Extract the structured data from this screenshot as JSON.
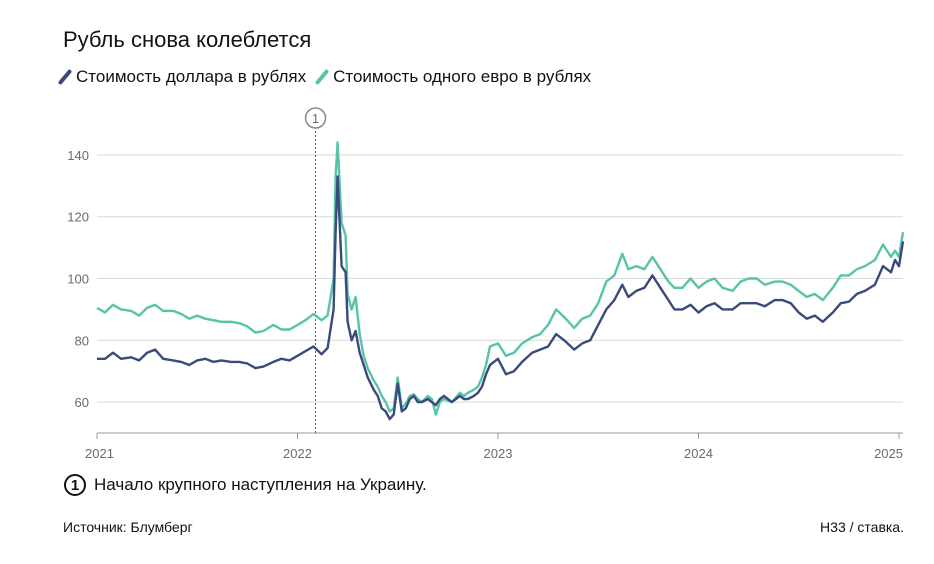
{
  "title": "Рубль снова колеблется",
  "legend": [
    {
      "label": "Стоимость доллара в рублях",
      "color": "#3a4a7a"
    },
    {
      "label": "Стоимость одного евро в рублях",
      "color": "#57c4a8"
    }
  ],
  "note": {
    "number": "1",
    "text": "Начало крупного наступления на Украину."
  },
  "footer": {
    "source": "Источник: Блумберг",
    "credit": "Н33 / ставка."
  },
  "chart_data": {
    "type": "line",
    "title": "Рубль снова колеблется",
    "xlabel": "",
    "ylabel": "",
    "xlim": [
      2021.0,
      2025.02
    ],
    "ylim": [
      50,
      150
    ],
    "x_ticks": [
      "2021",
      "2022",
      "2023",
      "2024",
      "2025"
    ],
    "y_ticks": [
      60,
      80,
      100,
      120,
      140
    ],
    "grid": true,
    "legend_position": "top-left",
    "annotation": {
      "label": "1",
      "x": 2022.09
    },
    "series": [
      {
        "name": "Стоимость доллара в рублях",
        "color": "#3a4a7a",
        "points": [
          [
            2021.0,
            74
          ],
          [
            2021.04,
            74
          ],
          [
            2021.08,
            76
          ],
          [
            2021.12,
            74
          ],
          [
            2021.17,
            74.5
          ],
          [
            2021.21,
            73.5
          ],
          [
            2021.25,
            76
          ],
          [
            2021.29,
            77
          ],
          [
            2021.33,
            74
          ],
          [
            2021.38,
            73.5
          ],
          [
            2021.42,
            73
          ],
          [
            2021.46,
            72
          ],
          [
            2021.5,
            73.5
          ],
          [
            2021.54,
            74
          ],
          [
            2021.58,
            73
          ],
          [
            2021.62,
            73.5
          ],
          [
            2021.67,
            73
          ],
          [
            2021.71,
            73
          ],
          [
            2021.75,
            72.5
          ],
          [
            2021.79,
            71
          ],
          [
            2021.83,
            71.5
          ],
          [
            2021.88,
            73
          ],
          [
            2021.92,
            74
          ],
          [
            2021.96,
            73.5
          ],
          [
            2022.0,
            75
          ],
          [
            2022.04,
            76.5
          ],
          [
            2022.08,
            78
          ],
          [
            2022.12,
            75.5
          ],
          [
            2022.15,
            77.5
          ],
          [
            2022.18,
            90
          ],
          [
            2022.19,
            115
          ],
          [
            2022.2,
            133
          ],
          [
            2022.22,
            104
          ],
          [
            2022.24,
            102
          ],
          [
            2022.25,
            86
          ],
          [
            2022.27,
            80
          ],
          [
            2022.29,
            83
          ],
          [
            2022.31,
            76
          ],
          [
            2022.33,
            72
          ],
          [
            2022.35,
            68
          ],
          [
            2022.38,
            64
          ],
          [
            2022.4,
            62
          ],
          [
            2022.42,
            58
          ],
          [
            2022.44,
            57
          ],
          [
            2022.46,
            54.5
          ],
          [
            2022.48,
            56
          ],
          [
            2022.5,
            66
          ],
          [
            2022.52,
            57
          ],
          [
            2022.54,
            58
          ],
          [
            2022.56,
            61
          ],
          [
            2022.58,
            62
          ],
          [
            2022.6,
            60
          ],
          [
            2022.62,
            60
          ],
          [
            2022.65,
            61
          ],
          [
            2022.67,
            60
          ],
          [
            2022.69,
            59
          ],
          [
            2022.71,
            61
          ],
          [
            2022.73,
            62
          ],
          [
            2022.75,
            61
          ],
          [
            2022.77,
            60
          ],
          [
            2022.79,
            61
          ],
          [
            2022.81,
            62
          ],
          [
            2022.83,
            61
          ],
          [
            2022.85,
            61
          ],
          [
            2022.88,
            62
          ],
          [
            2022.9,
            63
          ],
          [
            2022.92,
            65
          ],
          [
            2022.94,
            69
          ],
          [
            2022.96,
            72
          ],
          [
            2023.0,
            74
          ],
          [
            2023.04,
            69
          ],
          [
            2023.08,
            70
          ],
          [
            2023.12,
            73
          ],
          [
            2023.17,
            76
          ],
          [
            2023.21,
            77
          ],
          [
            2023.25,
            78
          ],
          [
            2023.29,
            82
          ],
          [
            2023.33,
            80
          ],
          [
            2023.38,
            77
          ],
          [
            2023.42,
            79
          ],
          [
            2023.46,
            80
          ],
          [
            2023.5,
            85
          ],
          [
            2023.54,
            90
          ],
          [
            2023.58,
            93
          ],
          [
            2023.62,
            98
          ],
          [
            2023.65,
            94
          ],
          [
            2023.69,
            96
          ],
          [
            2023.73,
            97
          ],
          [
            2023.77,
            101
          ],
          [
            2023.81,
            97
          ],
          [
            2023.85,
            93
          ],
          [
            2023.88,
            90
          ],
          [
            2023.92,
            90
          ],
          [
            2023.96,
            91.5
          ],
          [
            2024.0,
            89
          ],
          [
            2024.04,
            91
          ],
          [
            2024.08,
            92
          ],
          [
            2024.12,
            90
          ],
          [
            2024.17,
            90
          ],
          [
            2024.21,
            92
          ],
          [
            2024.25,
            92
          ],
          [
            2024.29,
            92
          ],
          [
            2024.33,
            91
          ],
          [
            2024.38,
            93
          ],
          [
            2024.42,
            93
          ],
          [
            2024.46,
            92
          ],
          [
            2024.5,
            89
          ],
          [
            2024.54,
            87
          ],
          [
            2024.58,
            88
          ],
          [
            2024.62,
            86
          ],
          [
            2024.67,
            89
          ],
          [
            2024.71,
            92
          ],
          [
            2024.75,
            92.5
          ],
          [
            2024.79,
            95
          ],
          [
            2024.83,
            96
          ],
          [
            2024.88,
            98
          ],
          [
            2024.92,
            104
          ],
          [
            2024.96,
            102
          ],
          [
            2024.98,
            106
          ],
          [
            2025.0,
            104
          ],
          [
            2025.02,
            112
          ]
        ]
      },
      {
        "name": "Стоимость одного евро в рублях",
        "color": "#57c4a8",
        "points": [
          [
            2021.0,
            90.5
          ],
          [
            2021.04,
            89
          ],
          [
            2021.08,
            91.5
          ],
          [
            2021.12,
            90
          ],
          [
            2021.17,
            89.5
          ],
          [
            2021.21,
            88
          ],
          [
            2021.25,
            90.5
          ],
          [
            2021.29,
            91.5
          ],
          [
            2021.33,
            89.5
          ],
          [
            2021.38,
            89.5
          ],
          [
            2021.42,
            88.5
          ],
          [
            2021.46,
            87
          ],
          [
            2021.5,
            88
          ],
          [
            2021.54,
            87
          ],
          [
            2021.58,
            86.5
          ],
          [
            2021.62,
            86
          ],
          [
            2021.67,
            86
          ],
          [
            2021.71,
            85.5
          ],
          [
            2021.75,
            84.5
          ],
          [
            2021.79,
            82.5
          ],
          [
            2021.83,
            83
          ],
          [
            2021.88,
            85
          ],
          [
            2021.92,
            83.5
          ],
          [
            2021.96,
            83.5
          ],
          [
            2022.0,
            85
          ],
          [
            2022.04,
            86.5
          ],
          [
            2022.08,
            88.5
          ],
          [
            2022.12,
            86.5
          ],
          [
            2022.15,
            88
          ],
          [
            2022.18,
            100
          ],
          [
            2022.19,
            133
          ],
          [
            2022.2,
            144
          ],
          [
            2022.22,
            118
          ],
          [
            2022.24,
            114
          ],
          [
            2022.25,
            95
          ],
          [
            2022.27,
            90
          ],
          [
            2022.29,
            94
          ],
          [
            2022.31,
            82
          ],
          [
            2022.33,
            75
          ],
          [
            2022.35,
            71
          ],
          [
            2022.38,
            67
          ],
          [
            2022.4,
            65
          ],
          [
            2022.42,
            62
          ],
          [
            2022.44,
            60
          ],
          [
            2022.46,
            57
          ],
          [
            2022.48,
            58
          ],
          [
            2022.5,
            68
          ],
          [
            2022.52,
            58
          ],
          [
            2022.54,
            59.5
          ],
          [
            2022.56,
            62
          ],
          [
            2022.58,
            62.5
          ],
          [
            2022.6,
            61
          ],
          [
            2022.62,
            60
          ],
          [
            2022.65,
            62
          ],
          [
            2022.67,
            61
          ],
          [
            2022.69,
            56
          ],
          [
            2022.71,
            60
          ],
          [
            2022.73,
            61
          ],
          [
            2022.75,
            60.5
          ],
          [
            2022.77,
            60
          ],
          [
            2022.79,
            61.5
          ],
          [
            2022.81,
            63
          ],
          [
            2022.83,
            62
          ],
          [
            2022.85,
            63
          ],
          [
            2022.88,
            64
          ],
          [
            2022.9,
            65
          ],
          [
            2022.92,
            68
          ],
          [
            2022.94,
            72
          ],
          [
            2022.96,
            78
          ],
          [
            2023.0,
            79
          ],
          [
            2023.04,
            75
          ],
          [
            2023.08,
            76
          ],
          [
            2023.12,
            79
          ],
          [
            2023.17,
            81
          ],
          [
            2023.21,
            82
          ],
          [
            2023.25,
            85
          ],
          [
            2023.29,
            90
          ],
          [
            2023.33,
            87.5
          ],
          [
            2023.38,
            84
          ],
          [
            2023.42,
            87
          ],
          [
            2023.46,
            88
          ],
          [
            2023.5,
            92
          ],
          [
            2023.54,
            99
          ],
          [
            2023.58,
            101
          ],
          [
            2023.62,
            108
          ],
          [
            2023.65,
            103
          ],
          [
            2023.69,
            104
          ],
          [
            2023.73,
            103
          ],
          [
            2023.77,
            107
          ],
          [
            2023.81,
            103
          ],
          [
            2023.85,
            99
          ],
          [
            2023.88,
            97
          ],
          [
            2023.92,
            97
          ],
          [
            2023.96,
            100
          ],
          [
            2024.0,
            97
          ],
          [
            2024.04,
            99
          ],
          [
            2024.08,
            100
          ],
          [
            2024.12,
            97
          ],
          [
            2024.17,
            96
          ],
          [
            2024.21,
            99
          ],
          [
            2024.25,
            100
          ],
          [
            2024.29,
            100
          ],
          [
            2024.33,
            98
          ],
          [
            2024.38,
            99
          ],
          [
            2024.42,
            99
          ],
          [
            2024.46,
            98
          ],
          [
            2024.5,
            96
          ],
          [
            2024.54,
            94
          ],
          [
            2024.58,
            95
          ],
          [
            2024.62,
            93
          ],
          [
            2024.67,
            97
          ],
          [
            2024.71,
            101
          ],
          [
            2024.75,
            101
          ],
          [
            2024.79,
            103
          ],
          [
            2024.83,
            104
          ],
          [
            2024.88,
            106
          ],
          [
            2024.92,
            111
          ],
          [
            2024.96,
            107
          ],
          [
            2024.98,
            109
          ],
          [
            2025.0,
            107
          ],
          [
            2025.02,
            115
          ]
        ]
      }
    ]
  }
}
